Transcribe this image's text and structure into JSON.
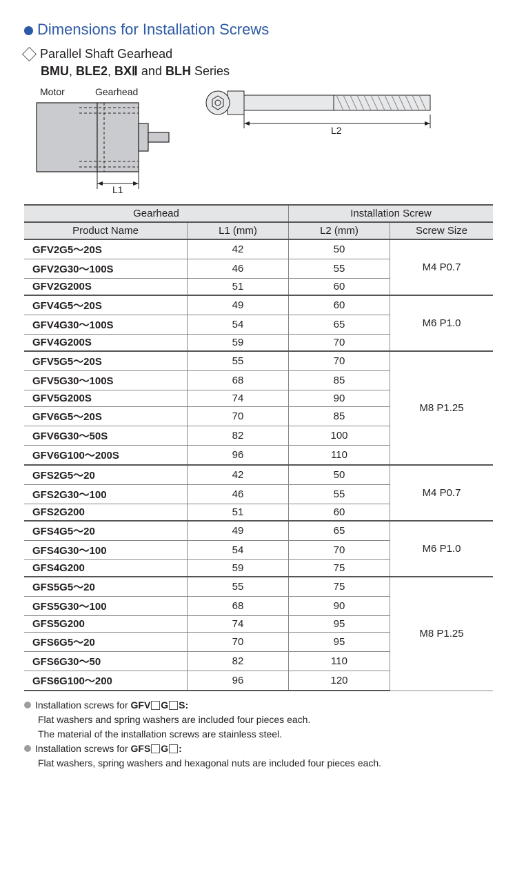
{
  "title": "Dimensions for Installation Screws",
  "subsection": "Parallel Shaft Gearhead",
  "series_prefix_bold": [
    "BMU",
    "BLE2",
    "BXⅡ"
  ],
  "series_last_bold": "BLH",
  "series_tail": " Series",
  "diagram": {
    "motor_label": "Motor",
    "gearhead_label": "Gearhead",
    "l1_label": "L1",
    "l2_label": "L2"
  },
  "table": {
    "h_gearhead": "Gearhead",
    "h_screw": "Installation Screw",
    "h_product": "Product Name",
    "h_l1": "L1 (mm)",
    "h_l2": "L2 (mm)",
    "h_size": "Screw Size",
    "groups": [
      {
        "size": "M4 P0.7",
        "rows": [
          {
            "n": "GFV2G5～20S",
            "l1": "42",
            "l2": "50"
          },
          {
            "n": "GFV2G30～100S",
            "l1": "46",
            "l2": "55"
          },
          {
            "n": "GFV2G200S",
            "l1": "51",
            "l2": "60"
          }
        ]
      },
      {
        "size": "M6 P1.0",
        "rows": [
          {
            "n": "GFV4G5～20S",
            "l1": "49",
            "l2": "60"
          },
          {
            "n": "GFV4G30～100S",
            "l1": "54",
            "l2": "65"
          },
          {
            "n": "GFV4G200S",
            "l1": "59",
            "l2": "70"
          }
        ]
      },
      {
        "size": "M8 P1.25",
        "rows": [
          {
            "n": "GFV5G5～20S",
            "l1": "55",
            "l2": "70"
          },
          {
            "n": "GFV5G30～100S",
            "l1": "68",
            "l2": "85"
          },
          {
            "n": "GFV5G200S",
            "l1": "74",
            "l2": "90"
          },
          {
            "n": "GFV6G5～20S",
            "l1": "70",
            "l2": "85"
          },
          {
            "n": "GFV6G30～50S",
            "l1": "82",
            "l2": "100"
          },
          {
            "n": "GFV6G100～200S",
            "l1": "96",
            "l2": "110"
          }
        ]
      },
      {
        "size": "M4 P0.7",
        "rows": [
          {
            "n": "GFS2G5～20",
            "l1": "42",
            "l2": "50"
          },
          {
            "n": "GFS2G30～100",
            "l1": "46",
            "l2": "55"
          },
          {
            "n": "GFS2G200",
            "l1": "51",
            "l2": "60"
          }
        ]
      },
      {
        "size": "M6 P1.0",
        "rows": [
          {
            "n": "GFS4G5～20",
            "l1": "49",
            "l2": "65"
          },
          {
            "n": "GFS4G30～100",
            "l1": "54",
            "l2": "70"
          },
          {
            "n": "GFS4G200",
            "l1": "59",
            "l2": "75"
          }
        ]
      },
      {
        "size": "M8 P1.25",
        "rows": [
          {
            "n": "GFS5G5～20",
            "l1": "55",
            "l2": "75"
          },
          {
            "n": "GFS5G30～100",
            "l1": "68",
            "l2": "90"
          },
          {
            "n": "GFS5G200",
            "l1": "74",
            "l2": "95"
          },
          {
            "n": "GFS6G5～20",
            "l1": "70",
            "l2": "95"
          },
          {
            "n": "GFS6G30～50",
            "l1": "82",
            "l2": "110"
          },
          {
            "n": "GFS6G100～200",
            "l1": "96",
            "l2": "120"
          }
        ]
      }
    ]
  },
  "notes": {
    "n1_prefix": "Installation screws for ",
    "n1_pattern": "GFV",
    "n1_mid": "G",
    "n1_suffix": "S:",
    "n1_line2": "Flat washers and spring washers are included four pieces each.",
    "n1_line3": "The material of the installation screws are stainless steel.",
    "n2_prefix": "Installation screws for ",
    "n2_pattern": "GFS",
    "n2_mid": "G",
    "n2_suffix": ":",
    "n2_line2": "Flat washers, spring washers and hexagonal nuts are included four pieces each."
  }
}
